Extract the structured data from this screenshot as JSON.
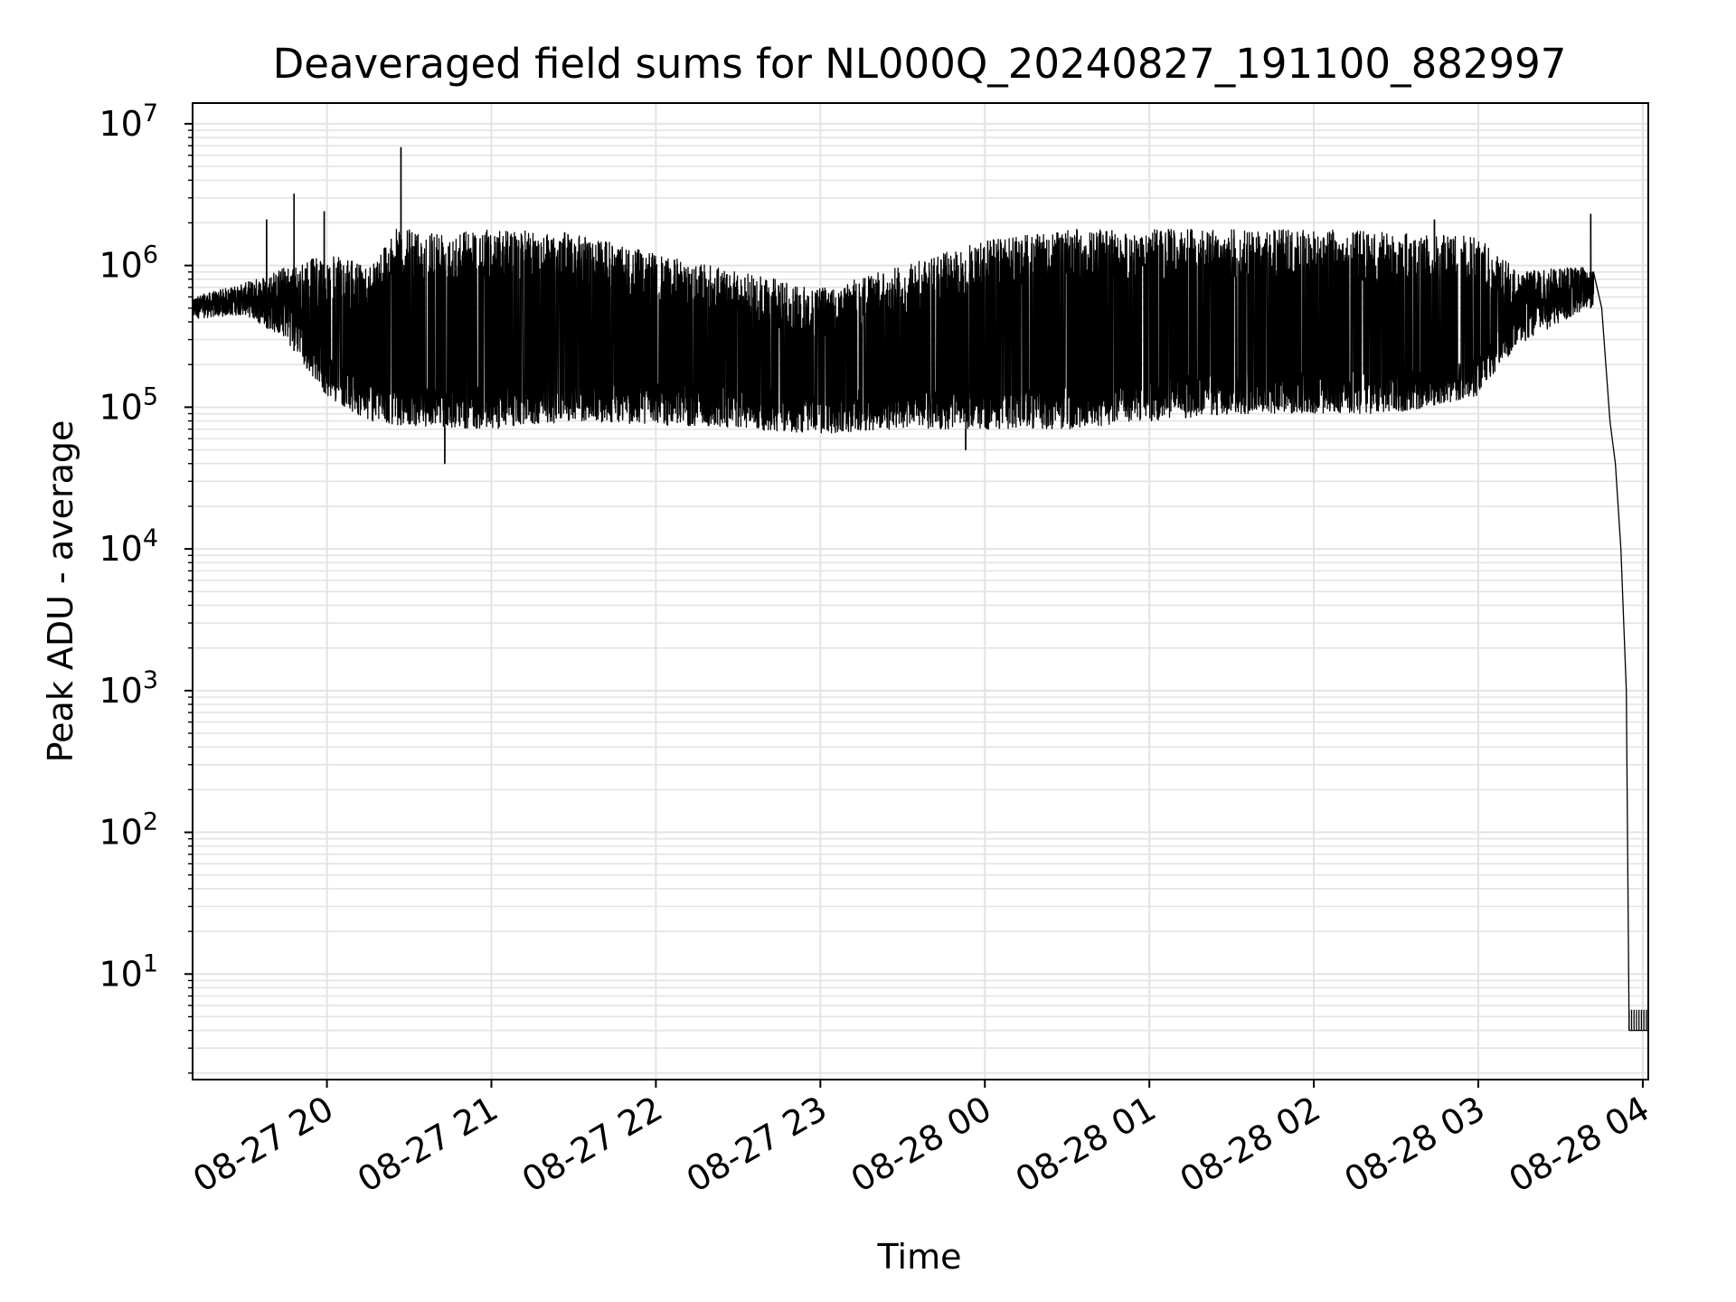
{
  "chart_data": {
    "type": "line",
    "title": "Deaveraged field sums for NL000Q_20240827_191100_882997",
    "xlabel": "Time",
    "ylabel": "Peak ADU - average",
    "yscale": "log",
    "ylim": [
      1.8,
      14000000
    ],
    "xlim": [
      "08-27 19:11",
      "08-28 04:02"
    ],
    "grid": true,
    "legend": "none",
    "line_color": "#000000",
    "x_ticks": [
      "08-27 20",
      "08-27 21",
      "08-27 22",
      "08-27 23",
      "08-28 00",
      "08-28 01",
      "08-28 02",
      "08-28 03",
      "08-28 04"
    ],
    "y_ticks": [
      {
        "base": "10",
        "exp": "1",
        "value": 10
      },
      {
        "base": "10",
        "exp": "2",
        "value": 100
      },
      {
        "base": "10",
        "exp": "3",
        "value": 1000
      },
      {
        "base": "10",
        "exp": "4",
        "value": 10000
      },
      {
        "base": "10",
        "exp": "5",
        "value": 100000
      },
      {
        "base": "10",
        "exp": "6",
        "value": 1000000
      },
      {
        "base": "10",
        "exp": "7",
        "value": 10000000
      }
    ],
    "series": [
      {
        "envelope": [
          {
            "x": "08-27 19:11",
            "low": 420000,
            "high": 600000
          },
          {
            "x": "08-27 19:30",
            "low": 450000,
            "high": 750000
          },
          {
            "x": "08-27 19:45",
            "low": 300000,
            "high": 1000000
          },
          {
            "x": "08-27 20:00",
            "low": 120000,
            "high": 1200000
          },
          {
            "x": "08-27 20:15",
            "low": 80000,
            "high": 1000000
          },
          {
            "x": "08-27 20:25",
            "low": 75000,
            "high": 1800000
          },
          {
            "x": "08-27 21:00",
            "low": 70000,
            "high": 1800000
          },
          {
            "x": "08-27 21:30",
            "low": 80000,
            "high": 1700000
          },
          {
            "x": "08-27 22:00",
            "low": 75000,
            "high": 1200000
          },
          {
            "x": "08-27 22:30",
            "low": 70000,
            "high": 900000
          },
          {
            "x": "08-27 23:00",
            "low": 65000,
            "high": 700000
          },
          {
            "x": "08-27 23:30",
            "low": 70000,
            "high": 1000000
          },
          {
            "x": "08-28 00:00",
            "low": 70000,
            "high": 1500000
          },
          {
            "x": "08-28 00:30",
            "low": 70000,
            "high": 1800000
          },
          {
            "x": "08-28 01:00",
            "low": 80000,
            "high": 1800000
          },
          {
            "x": "08-28 01:30",
            "low": 90000,
            "high": 1800000
          },
          {
            "x": "08-28 02:00",
            "low": 90000,
            "high": 1800000
          },
          {
            "x": "08-28 02:30",
            "low": 90000,
            "high": 1700000
          },
          {
            "x": "08-28 03:00",
            "low": 120000,
            "high": 1600000
          },
          {
            "x": "08-28 03:15",
            "low": 280000,
            "high": 900000
          },
          {
            "x": "08-28 03:40",
            "low": 500000,
            "high": 1000000
          }
        ],
        "spikes": [
          {
            "x": "08-27 19:38",
            "value": 2100000
          },
          {
            "x": "08-27 19:48",
            "value": 3200000
          },
          {
            "x": "08-27 19:59",
            "value": 2400000
          },
          {
            "x": "08-27 20:27",
            "value": 6800000
          },
          {
            "x": "08-27 20:43",
            "value": 40000
          },
          {
            "x": "08-27 23:53",
            "value": 50000
          },
          {
            "x": "08-28 02:44",
            "value": 2100000
          },
          {
            "x": "08-28 03:41",
            "value": 2300000
          }
        ],
        "decay": [
          {
            "x": "08-28 03:42",
            "value": 900000
          },
          {
            "x": "08-28 03:45",
            "value": 500000
          },
          {
            "x": "08-28 03:48",
            "value": 80000
          },
          {
            "x": "08-28 03:50",
            "value": 40000
          },
          {
            "x": "08-28 03:52",
            "value": 10000
          },
          {
            "x": "08-28 03:54",
            "value": 1000
          },
          {
            "x": "08-28 03:55",
            "value": 4
          },
          {
            "x": "08-28 04:02",
            "value": 4
          }
        ]
      }
    ]
  }
}
